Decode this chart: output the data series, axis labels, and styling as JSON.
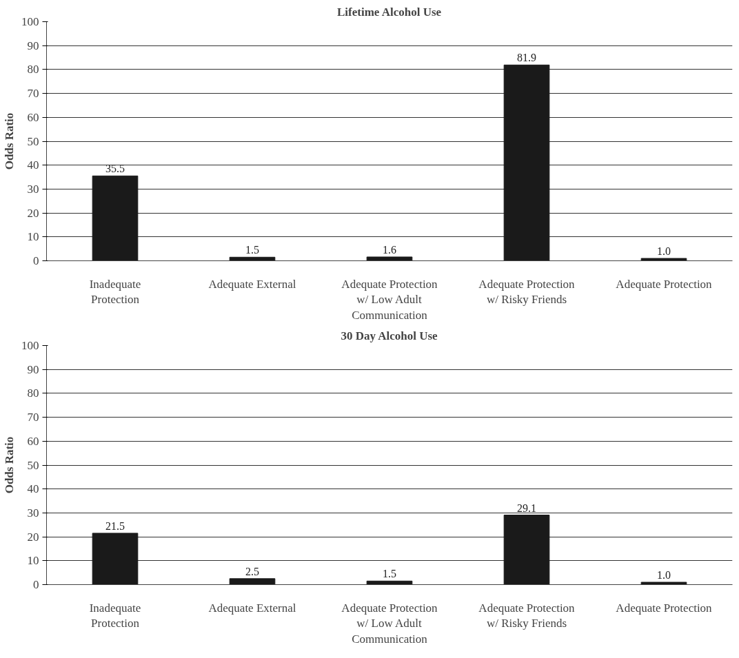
{
  "chart_data": [
    {
      "type": "bar",
      "title": "Lifetime Alcohol Use",
      "ylabel": "Odds Ratio",
      "categories": [
        "Inadequate Protection",
        "Adequate External",
        "Adequate Protection w/ Low Adult Communication",
        "Adequate Protection w/ Risky Friends",
        "Adequate Protection"
      ],
      "values": [
        35.5,
        1.5,
        1.6,
        81.9,
        1.0
      ],
      "value_labels": [
        "35.5",
        "1.5",
        "1.6",
        "81.9",
        "1.0"
      ],
      "color": "#1a1a1a",
      "ylim": [
        0,
        100
      ],
      "yticks": [
        0,
        10,
        20,
        30,
        40,
        50,
        60,
        70,
        80,
        90,
        100
      ],
      "grid": "y"
    },
    {
      "type": "bar",
      "title": "30 Day Alcohol Use",
      "ylabel": "Odds Ratio",
      "categories": [
        "Inadequate Protection",
        "Adequate External",
        "Adequate Protection w/ Low Adult Communication",
        "Adequate Protection w/ Risky Friends",
        "Adequate Protection"
      ],
      "values": [
        21.5,
        2.5,
        1.5,
        29.1,
        1.0
      ],
      "value_labels": [
        "21.5",
        "2.5",
        "1.5",
        "29.1",
        "1.0"
      ],
      "color": "#1a1a1a",
      "ylim": [
        0,
        100
      ],
      "yticks": [
        0,
        10,
        20,
        30,
        40,
        50,
        60,
        70,
        80,
        90,
        100
      ],
      "grid": "y"
    }
  ]
}
